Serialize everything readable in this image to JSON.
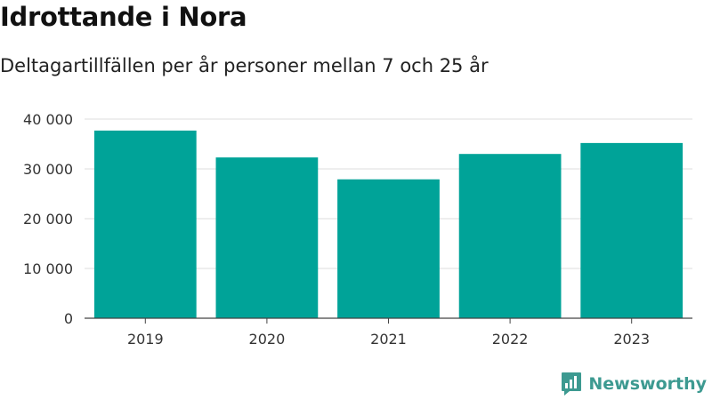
{
  "header": {
    "title": "Idrottande i Nora",
    "subtitle": "Deltagartillfällen per år personer mellan 7 och 25 år"
  },
  "brand": {
    "name": "Newsworthy",
    "color": "#3d9a91"
  },
  "chart_data": {
    "type": "bar",
    "title": "Idrottande i Nora",
    "subtitle": "Deltagartillfällen per år personer mellan 7 och 25 år",
    "categories": [
      "2019",
      "2020",
      "2021",
      "2022",
      "2023"
    ],
    "values": [
      37700,
      32300,
      27900,
      33000,
      35200
    ],
    "ylim": [
      0,
      40000
    ],
    "yticks": [
      0,
      10000,
      20000,
      30000,
      40000
    ],
    "ytick_labels": [
      "0",
      "10 000",
      "20 000",
      "30 000",
      "40 000"
    ],
    "xlabel": "",
    "ylabel": "",
    "grid": true,
    "bar_color": "#00a398"
  }
}
